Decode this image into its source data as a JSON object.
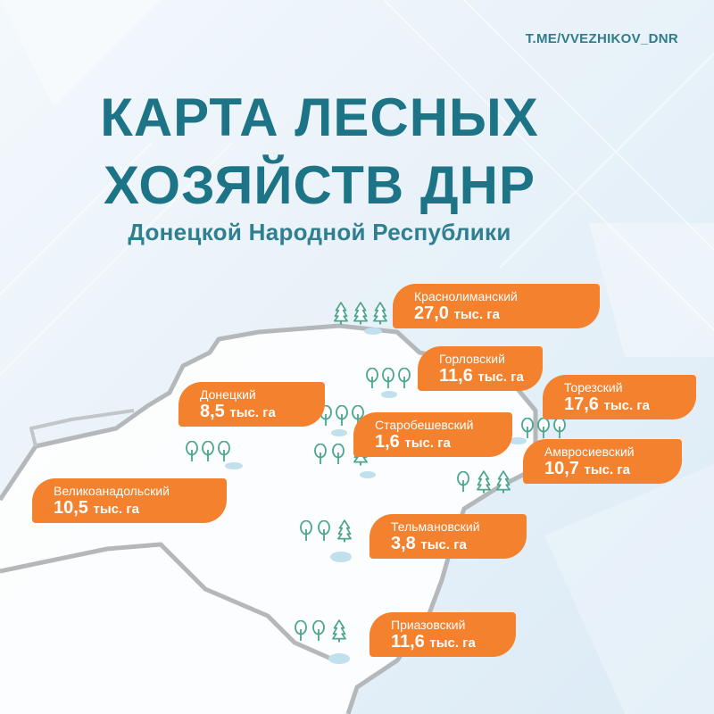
{
  "header": {
    "handle": "T.ME/VVEZHIKOV_DNR",
    "title_line1": "КАРТА ЛЕСНЫХ",
    "title_line2": "ХОЗЯЙСТВ ДНР",
    "subtitle": "Донецкой Народной Республики"
  },
  "colors": {
    "title": "#1d7487",
    "badge": "#f3812d",
    "tree": "#4aa68c",
    "border": "#b5b8bb",
    "lake": "#bfe0ec"
  },
  "unit": "тыс. га",
  "forestries": [
    {
      "name": "Краснолиманский",
      "area": "27,0"
    },
    {
      "name": "Горловский",
      "area": "11,6"
    },
    {
      "name": "Торезский",
      "area": "17,6"
    },
    {
      "name": "Донецкий",
      "area": "8,5"
    },
    {
      "name": "Старобешевский",
      "area": "1,6"
    },
    {
      "name": "Амвросиевский",
      "area": "10,7"
    },
    {
      "name": "Великоанадольский",
      "area": "10,5"
    },
    {
      "name": "Тельмановский",
      "area": "3,8"
    },
    {
      "name": "Приазовский",
      "area": "11,6"
    }
  ]
}
